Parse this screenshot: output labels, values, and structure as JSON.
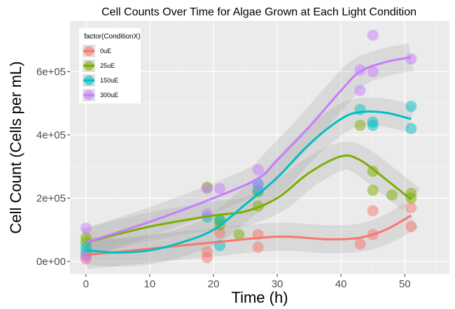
{
  "chart_data": {
    "type": "scatter",
    "title": "Cell Counts Over Time for Algae Grown at Each Light Condition",
    "xlabel": "Time (h)",
    "ylabel": "Cell Count (Cells per mL)",
    "xlim": [
      -2.5,
      57
    ],
    "ylim": [
      -40000,
      760000
    ],
    "xticks": [
      0,
      10,
      20,
      30,
      40,
      50
    ],
    "xtick_labels": [
      "0",
      "10",
      "20",
      "30",
      "40",
      "50"
    ],
    "yticks": [
      0,
      200000,
      400000,
      600000
    ],
    "ytick_labels": [
      "0e+00",
      "2e+05",
      "4e+05",
      "6e+05"
    ],
    "grid": true,
    "legend": {
      "title": "factor(ConditionX)",
      "placement": "top-left"
    },
    "series": [
      {
        "name": "0uE",
        "color": "#F8766D",
        "points": [
          [
            0,
            8000
          ],
          [
            0,
            20000
          ],
          [
            19,
            12000
          ],
          [
            19,
            30000
          ],
          [
            21,
            90000
          ],
          [
            27,
            45000
          ],
          [
            27,
            85000
          ],
          [
            43,
            55000
          ],
          [
            45,
            85000
          ],
          [
            45,
            160000
          ],
          [
            51,
            110000
          ],
          [
            51,
            170000
          ]
        ],
        "smooth": [
          [
            0,
            20000
          ],
          [
            10,
            40000
          ],
          [
            20,
            60000
          ],
          [
            30,
            78000
          ],
          [
            38,
            70000
          ],
          [
            43,
            75000
          ],
          [
            47,
            100000
          ],
          [
            51,
            145000
          ]
        ]
      },
      {
        "name": "25uE",
        "color": "#7CAE00",
        "points": [
          [
            0,
            60000
          ],
          [
            0,
            75000
          ],
          [
            19,
            235000
          ],
          [
            21,
            115000
          ],
          [
            21,
            130000
          ],
          [
            24,
            85000
          ],
          [
            27,
            175000
          ],
          [
            27,
            220000
          ],
          [
            43,
            430000
          ],
          [
            45,
            225000
          ],
          [
            45,
            285000
          ],
          [
            48,
            210000
          ],
          [
            51,
            200000
          ],
          [
            51,
            215000
          ]
        ],
        "smooth": [
          [
            0,
            60000
          ],
          [
            10,
            110000
          ],
          [
            20,
            145000
          ],
          [
            25,
            158000
          ],
          [
            30,
            200000
          ],
          [
            35,
            280000
          ],
          [
            40,
            332000
          ],
          [
            43,
            320000
          ],
          [
            47,
            260000
          ],
          [
            51,
            195000
          ]
        ]
      },
      {
        "name": "150uE",
        "color": "#00BFC4",
        "points": [
          [
            0,
            30000
          ],
          [
            0,
            45000
          ],
          [
            19,
            140000
          ],
          [
            21,
            50000
          ],
          [
            21,
            130000
          ],
          [
            27,
            225000
          ],
          [
            27,
            245000
          ],
          [
            43,
            480000
          ],
          [
            45,
            430000
          ],
          [
            45,
            440000
          ],
          [
            51,
            420000
          ],
          [
            51,
            490000
          ]
        ],
        "smooth": [
          [
            0,
            35000
          ],
          [
            5,
            28000
          ],
          [
            10,
            35000
          ],
          [
            15,
            60000
          ],
          [
            20,
            100000
          ],
          [
            25,
            180000
          ],
          [
            30,
            265000
          ],
          [
            35,
            370000
          ],
          [
            40,
            450000
          ],
          [
            43,
            472000
          ],
          [
            47,
            470000
          ],
          [
            51,
            450000
          ]
        ]
      },
      {
        "name": "300uE",
        "color": "#C77CFF",
        "points": [
          [
            0,
            15000
          ],
          [
            0,
            105000
          ],
          [
            19,
            150000
          ],
          [
            19,
            230000
          ],
          [
            21,
            230000
          ],
          [
            27,
            240000
          ],
          [
            27,
            290000
          ],
          [
            43,
            540000
          ],
          [
            43,
            605000
          ],
          [
            45,
            600000
          ],
          [
            45,
            715000
          ],
          [
            51,
            640000
          ]
        ],
        "smooth": [
          [
            0,
            60000
          ],
          [
            10,
            125000
          ],
          [
            20,
            200000
          ],
          [
            27,
            262000
          ],
          [
            30,
            320000
          ],
          [
            35,
            425000
          ],
          [
            40,
            540000
          ],
          [
            43,
            600000
          ],
          [
            47,
            630000
          ],
          [
            51,
            645000
          ]
        ]
      }
    ]
  }
}
